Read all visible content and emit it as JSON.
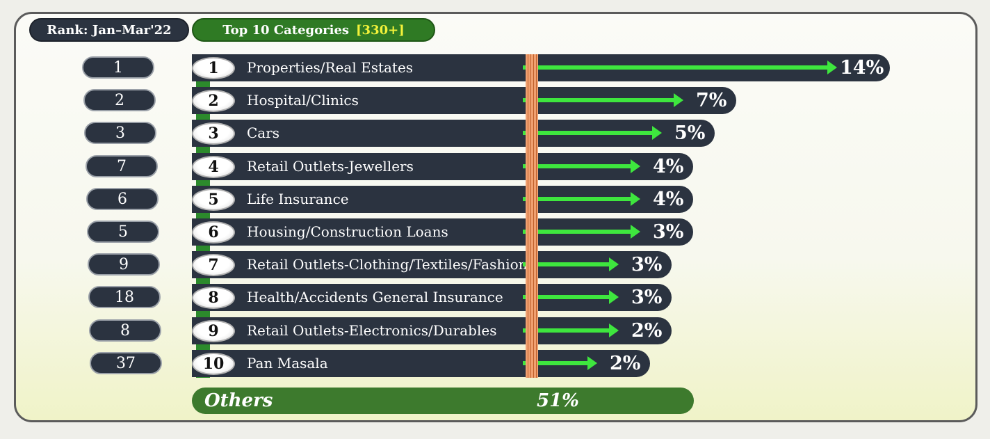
{
  "header": {
    "rank_label": "Rank: Jan–Mar'22",
    "categories_label": "Top 10 Categories",
    "categories_count": "[330+]"
  },
  "chart_data": {
    "type": "bar",
    "title": "Top 10 Categories [330+]",
    "value_unit": "%",
    "categories": [
      "Properties/Real Estates",
      "Hospital/Clinics",
      "Cars",
      "Retail Outlets-Jewellers",
      "Life Insurance",
      "Housing/Construction Loans",
      "Retail Outlets-Clothing/Textiles/Fashion",
      "Health/Accidents General Insurance",
      "Retail Outlets-Electronics/Durables",
      "Pan Masala"
    ],
    "ranks": [
      "1",
      "2",
      "3",
      "4",
      "5",
      "6",
      "7",
      "8",
      "9",
      "10"
    ],
    "previous_ranks": [
      "1",
      "2",
      "3",
      "7",
      "6",
      "5",
      "9",
      "18",
      "8",
      "37"
    ],
    "values": [
      14,
      7,
      5,
      4,
      4,
      3,
      3,
      3,
      2,
      2
    ],
    "value_labels": [
      "14%",
      "7%",
      "5%",
      "4%",
      "4%",
      "3%",
      "3%",
      "3%",
      "2%",
      "2%"
    ],
    "arrow_ends": [
      14,
      7,
      6,
      5,
      5,
      5,
      4,
      4,
      4,
      3
    ],
    "others": {
      "label": "Others",
      "value": 51,
      "value_label": "51%"
    }
  },
  "colors": {
    "bar": "#2b3340",
    "arrow": "#3ee63e",
    "others": "#3d7a2d",
    "header_green": "#2f7a24",
    "highlight": "#f2f23a"
  }
}
